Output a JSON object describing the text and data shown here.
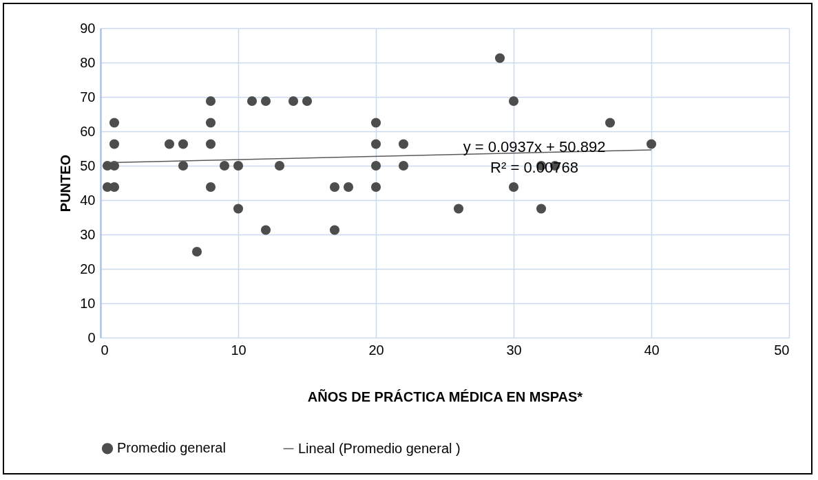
{
  "chart_data": {
    "type": "scatter",
    "xlabel": "AÑOS DE PRÁCTICA MÉDICA EN MSPAS*",
    "ylabel": "PUNTEO",
    "xlim": [
      0,
      50
    ],
    "ylim": [
      0,
      90
    ],
    "xticks": [
      0,
      10,
      20,
      30,
      40,
      50
    ],
    "yticks": [
      0,
      10,
      20,
      30,
      40,
      50,
      60,
      70,
      80,
      90
    ],
    "grid": true,
    "legend": "bottom",
    "series": [
      {
        "name": "Promedio general",
        "marker": "circle",
        "color": "#4d4d4d",
        "x": [
          0.5,
          0.5,
          1,
          1,
          1,
          1,
          5,
          6,
          6,
          7,
          8,
          8,
          8,
          8,
          9,
          10,
          10,
          11,
          12,
          12,
          13,
          14,
          15,
          17,
          17,
          18,
          20,
          20,
          20,
          20,
          22,
          22,
          26,
          29,
          30,
          30,
          32,
          32,
          33,
          37,
          40
        ],
        "values": [
          50,
          43.8,
          62.5,
          56.3,
          50,
          43.8,
          56.3,
          56.3,
          50,
          25,
          68.8,
          62.5,
          56.3,
          43.8,
          50,
          50,
          37.5,
          68.8,
          68.8,
          31.3,
          50,
          68.8,
          68.8,
          43.8,
          31.3,
          43.8,
          62.5,
          56.3,
          50,
          43.8,
          56.3,
          50,
          37.5,
          81.3,
          68.8,
          43.8,
          50,
          37.5,
          50,
          62.5,
          56.3
        ]
      },
      {
        "name": "Lineal  (Promedio general )",
        "type": "line",
        "marker": "none",
        "color": "#595959",
        "x": [
          0.5,
          40
        ],
        "values": [
          50.9,
          54.6
        ]
      }
    ],
    "annotations": [
      "y = 0.0937x + 50.892",
      "R² = 0.00768"
    ]
  }
}
